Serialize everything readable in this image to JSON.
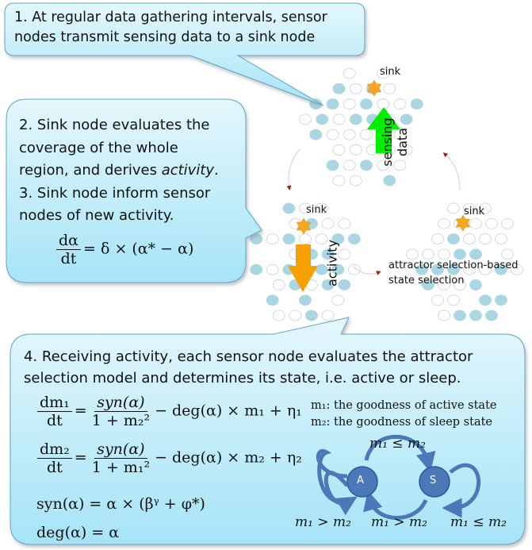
{
  "step1": "1. At regular data gathering intervals, sensor nodes transmit sensing data to a sink node",
  "step2_lines": [
    "2. Sink node evaluates the",
    "coverage of the whole",
    "region, and derives ",
    "activity",
    "."
  ],
  "step3_lines": [
    "3. Sink node inform sensor",
    "nodes of new activity."
  ],
  "activity_eq": {
    "num": "dα",
    "den": "dt",
    "rhs": "= δ × (α* − α)"
  },
  "step4": "4. Receiving activity, each sensor node evaluates the attractor selection model and determines its state, i.e. active or sleep.",
  "labels": {
    "sink": "sink",
    "sensing_data": "sensing data",
    "activity": "activity",
    "state_selection": "attractor selection-based state selection"
  },
  "equations": {
    "dm1": {
      "num": "dm₁",
      "den": "dt",
      "frac_num": "syn(α)",
      "frac_den": "1 + m₂²",
      "tail": "− deg(α) × m₁ + η₁"
    },
    "dm2": {
      "num": "dm₂",
      "den": "dt",
      "frac_num": "syn(α)",
      "frac_den": "1 + m₁²",
      "tail": "− deg(α) × m₂ + η₂"
    },
    "syn": "syn(α) = α × (βᵞ + φ*)",
    "deg": "deg(α) = α"
  },
  "legend": [
    "m₁: the goodness of active state",
    "m₂: the goodness of sleep state"
  ],
  "state_diagram": {
    "nodes": [
      "A",
      "S"
    ],
    "top_condition": "m₁ ≤ m₂",
    "bottom_conditions": [
      "m₁ > m₂",
      "m₁ > m₂",
      "m₁ ≤ m₂"
    ]
  },
  "colors": {
    "callout_fill_top": "#d6f3fb",
    "callout_fill_bottom": "#a9e6f8",
    "callout_border": "#5aa9c7",
    "node_active": "#a9d6e2",
    "sink_star": "#f5a623",
    "sensing_arrow": "#00ee00",
    "activity_arrow": "#f5a100",
    "state_node": "#4a78b8"
  }
}
